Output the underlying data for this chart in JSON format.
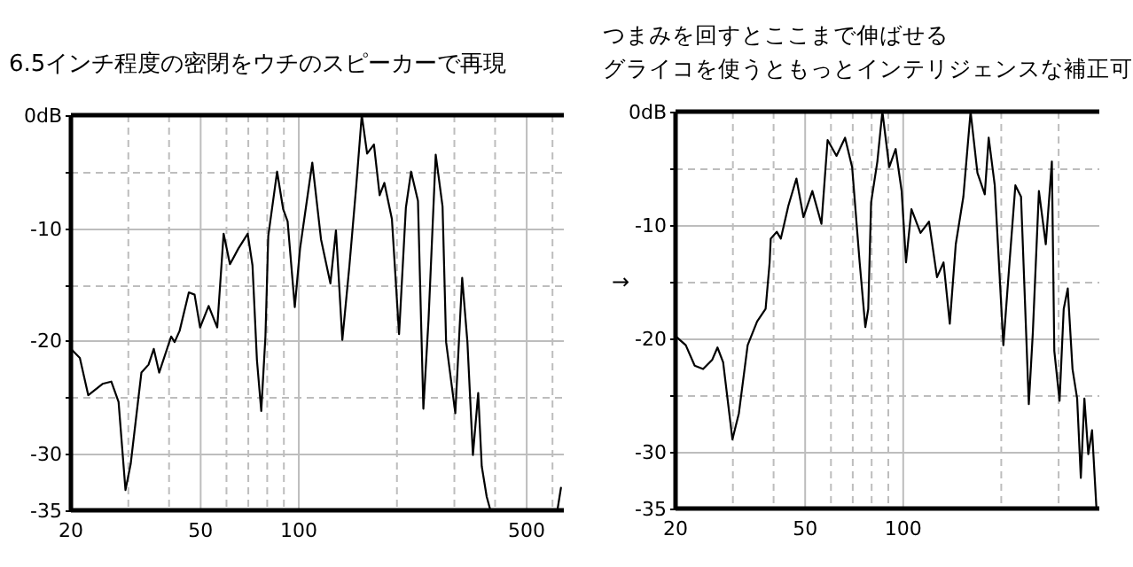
{
  "chart_data": [
    {
      "type": "line",
      "title": "6.5インチ程度の密閉をウチのスピーカーで再現",
      "log": "x",
      "grid": true,
      "xlim": [
        20,
        650
      ],
      "ylim": [
        -35,
        0
      ],
      "xticks": [
        20,
        {
          "value": 30,
          "label": null
        },
        {
          "value": 40,
          "label": null
        },
        50,
        {
          "value": 60,
          "label": null
        },
        {
          "value": 70,
          "label": null
        },
        {
          "value": 80,
          "label": null
        },
        {
          "value": 90,
          "label": null
        },
        100,
        {
          "value": 200,
          "label": null
        },
        {
          "value": 300,
          "label": null
        },
        {
          "value": 400,
          "label": null
        },
        500,
        {
          "value": 600,
          "label": null
        }
      ],
      "yticks": [
        {
          "value": 0,
          "label": "0dB"
        },
        {
          "value": -5,
          "label": null
        },
        -10,
        {
          "value": -15,
          "label": null
        },
        -20,
        {
          "value": -25,
          "label": null
        },
        -30,
        -35
      ],
      "series": [
        {
          "color": "#000000",
          "x": [
            20,
            21.3,
            22.6,
            25.0,
            26.6,
            28.0,
            29.4,
            30.5,
            32.9,
            34.6,
            35.9,
            37.3,
            40.6,
            41.6,
            43.1,
            46.0,
            47.9,
            49.8,
            52.9,
            56.2,
            58.8,
            61.5,
            65.3,
            69.7,
            72.1,
            74.4,
            76.7,
            79.0,
            80.6,
            85.8,
            89.5,
            92.4,
            97.2,
            100.9,
            110,
            117,
            125,
            130,
            136,
            143,
            150,
            156,
            162,
            170,
            177,
            183,
            193,
            203,
            213,
            221,
            232,
            241,
            250,
            263,
            276,
            283,
            302,
            317,
            329,
            342,
            355,
            364,
            377,
            387,
            400,
            621,
            637
          ],
          "values": [
            -20.7,
            -21.5,
            -24.8,
            -23.8,
            -23.6,
            -25.4,
            -33.2,
            -30.9,
            -22.8,
            -22.1,
            -20.7,
            -22.8,
            -19.6,
            -20.1,
            -19.1,
            -15.7,
            -15.9,
            -18.8,
            -16.9,
            -18.8,
            -10.5,
            -13.2,
            -11.8,
            -10.5,
            -13.3,
            -21.7,
            -26.2,
            -19.6,
            -10.7,
            -5.0,
            -8.3,
            -9.4,
            -17.0,
            -11.8,
            -4.2,
            -11.0,
            -14.9,
            -10.2,
            -19.9,
            -13.3,
            -6.3,
            0,
            -3.4,
            -2.6,
            -7.1,
            -6.0,
            -9.2,
            -19.4,
            -8.2,
            -5.0,
            -7.6,
            -26.0,
            -18.1,
            -3.5,
            -8.1,
            -20.1,
            -26.4,
            -14.4,
            -20.1,
            -30.1,
            -24.6,
            -31.1,
            -33.8,
            -35,
            null,
            -35,
            -33.0
          ]
        }
      ]
    },
    {
      "type": "line",
      "title": "つまみを回すとここまで伸ばせる",
      "subtitle": "グライコを使うともっとインテリジェンスな補正可",
      "annotations": [
        "→"
      ],
      "log": "x",
      "grid": true,
      "xlim": [
        20,
        400
      ],
      "ylim": [
        -35,
        0
      ],
      "xticks": [
        20,
        {
          "value": 30,
          "label": null
        },
        {
          "value": 40,
          "label": null
        },
        50,
        {
          "value": 60,
          "label": null
        },
        {
          "value": 70,
          "label": null
        },
        {
          "value": 80,
          "label": null
        },
        {
          "value": 90,
          "label": null
        },
        100,
        {
          "value": 200,
          "label": null
        },
        {
          "value": 300,
          "label": null
        }
      ],
      "yticks": [
        {
          "value": 0,
          "label": "0dB"
        },
        {
          "value": -5,
          "label": null
        },
        -10,
        {
          "value": -15,
          "label": null
        },
        -20,
        {
          "value": -25,
          "label": null
        },
        -30,
        -35
      ],
      "series": [
        {
          "color": "#000000",
          "x": [
            20,
            21.5,
            22.9,
            24.3,
            25.9,
            26.9,
            28.0,
            29.9,
            31.3,
            33.3,
            35.6,
            37.8,
            38.9,
            39.2,
            40.9,
            42.1,
            44.4,
            47.0,
            49.4,
            52.6,
            56.1,
            58.6,
            62.4,
            66.3,
            69.7,
            73.5,
            76.5,
            78.1,
            79.7,
            83.3,
            86.3,
            90.6,
            94.8,
            98.9,
            102,
            106,
            113,
            120,
            127,
            133,
            139,
            145,
            153,
            161,
            169,
            178,
            183,
            191,
            203,
            212,
            221,
            230,
            243,
            250,
            261,
            274,
            286,
            291,
            302,
            311,
            320,
            331,
            342,
            351,
            360,
            370,
            380,
            392
          ],
          "values": [
            -19.8,
            -20.6,
            -22.4,
            -22.7,
            -21.9,
            -20.8,
            -22.1,
            -28.9,
            -26.6,
            -20.6,
            -18.5,
            -17.4,
            -13.3,
            -11.2,
            -10.6,
            -11.2,
            -8.3,
            -5.9,
            -9.3,
            -7.0,
            -9.9,
            -2.5,
            -3.9,
            -2.3,
            -4.9,
            -13.3,
            -19.0,
            -17.4,
            -8.0,
            -4.4,
            0,
            -4.9,
            -3.3,
            -7.0,
            -13.3,
            -8.6,
            -10.7,
            -9.7,
            -14.6,
            -13.3,
            -18.7,
            -11.7,
            -7.5,
            0,
            -5.4,
            -7.3,
            -2.3,
            -6.5,
            -20.6,
            -13.3,
            -6.5,
            -7.5,
            -25.8,
            -19.5,
            -7.0,
            -11.7,
            -4.4,
            -21.1,
            -25.5,
            -17.4,
            -15.6,
            -22.7,
            -25.3,
            -32.3,
            -25.3,
            -30.2,
            -28.1,
            -35
          ]
        }
      ]
    }
  ]
}
